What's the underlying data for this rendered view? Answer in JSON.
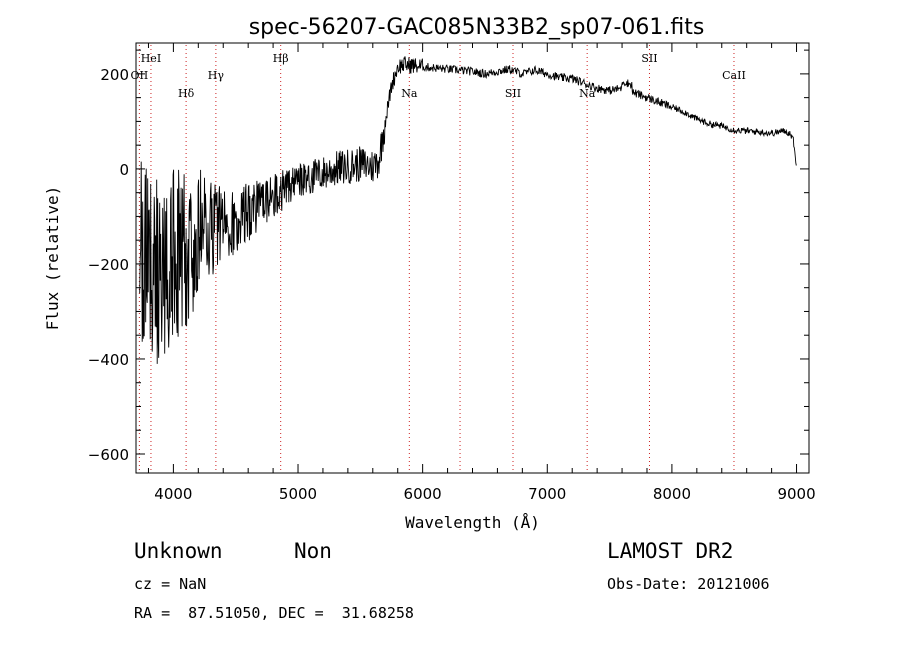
{
  "chart_data": {
    "type": "line",
    "title": "spec-56207-GAC085N33B2_sp07-061.fits",
    "xlabel": "Wavelength (Å)",
    "ylabel": "Flux (relative)",
    "xlim": [
      3700,
      9100
    ],
    "ylim": [
      -640,
      265
    ],
    "x_ticks": [
      4000,
      5000,
      6000,
      7000,
      8000,
      9000
    ],
    "y_ticks": [
      -600,
      -400,
      -200,
      0,
      200
    ],
    "y_tick_labels": [
      "−600",
      "−400",
      "−200",
      "0",
      "200"
    ],
    "x_tick_labels": [
      "4000",
      "5000",
      "6000",
      "7000",
      "8000",
      "9000"
    ],
    "series": [
      {
        "name": "spectrum",
        "anchors": [
          [
            3700,
            -150
          ],
          [
            3800,
            -200
          ],
          [
            3900,
            -230
          ],
          [
            4000,
            -190
          ],
          [
            4100,
            -180
          ],
          [
            4200,
            -140
          ],
          [
            4300,
            -120
          ],
          [
            4400,
            -110
          ],
          [
            4500,
            -110
          ],
          [
            4600,
            -90
          ],
          [
            4700,
            -75
          ],
          [
            4800,
            -60
          ],
          [
            4900,
            -40
          ],
          [
            5000,
            -28
          ],
          [
            5100,
            -18
          ],
          [
            5200,
            -10
          ],
          [
            5300,
            0
          ],
          [
            5400,
            5
          ],
          [
            5500,
            10
          ],
          [
            5600,
            5
          ],
          [
            5650,
            20
          ],
          [
            5700,
            100
          ],
          [
            5750,
            175
          ],
          [
            5800,
            215
          ],
          [
            5850,
            220
          ],
          [
            6000,
            215
          ],
          [
            6200,
            210
          ],
          [
            6400,
            205
          ],
          [
            6500,
            200
          ],
          [
            6600,
            205
          ],
          [
            6700,
            210
          ],
          [
            6800,
            200
          ],
          [
            6900,
            208
          ],
          [
            7000,
            200
          ],
          [
            7100,
            192
          ],
          [
            7200,
            190
          ],
          [
            7300,
            180
          ],
          [
            7400,
            170
          ],
          [
            7500,
            165
          ],
          [
            7600,
            170
          ],
          [
            7700,
            160
          ],
          [
            7800,
            150
          ],
          [
            7900,
            140
          ],
          [
            8000,
            130
          ],
          [
            8100,
            120
          ],
          [
            8200,
            105
          ],
          [
            8300,
            95
          ],
          [
            8400,
            90
          ],
          [
            8500,
            82
          ],
          [
            8600,
            80
          ],
          [
            8700,
            78
          ],
          [
            8800,
            75
          ],
          [
            8900,
            80
          ],
          [
            8950,
            75
          ],
          [
            8975,
            60
          ],
          [
            9000,
            5
          ]
        ]
      }
    ],
    "lines": [
      {
        "label": "HeI",
        "x": 3820,
        "level": "top"
      },
      {
        "label": "OII",
        "x": 3727,
        "level": "upper"
      },
      {
        "label": "Hδ",
        "x": 4102,
        "level": "lower"
      },
      {
        "label": "Hγ",
        "x": 4341,
        "level": "upper"
      },
      {
        "label": "Hβ",
        "x": 4861,
        "level": "top"
      },
      {
        "label": "Na",
        "x": 5893,
        "level": "lower"
      },
      {
        "label": "",
        "x": 6300,
        "level": "none"
      },
      {
        "label": "SII",
        "x": 6725,
        "level": "lower"
      },
      {
        "label": "Na",
        "x": 7320,
        "level": "lower"
      },
      {
        "label": "SII",
        "x": 7820,
        "level": "top"
      },
      {
        "label": "CaII",
        "x": 8498,
        "level": "upper"
      }
    ]
  },
  "info": {
    "class": "Unknown",
    "subclass": "Non",
    "survey": "LAMOST DR2",
    "cz": "cz = NaN",
    "obs_date": "Obs-Date: 20121006",
    "coords": "RA =  87.51050, DEC =  31.68258"
  }
}
